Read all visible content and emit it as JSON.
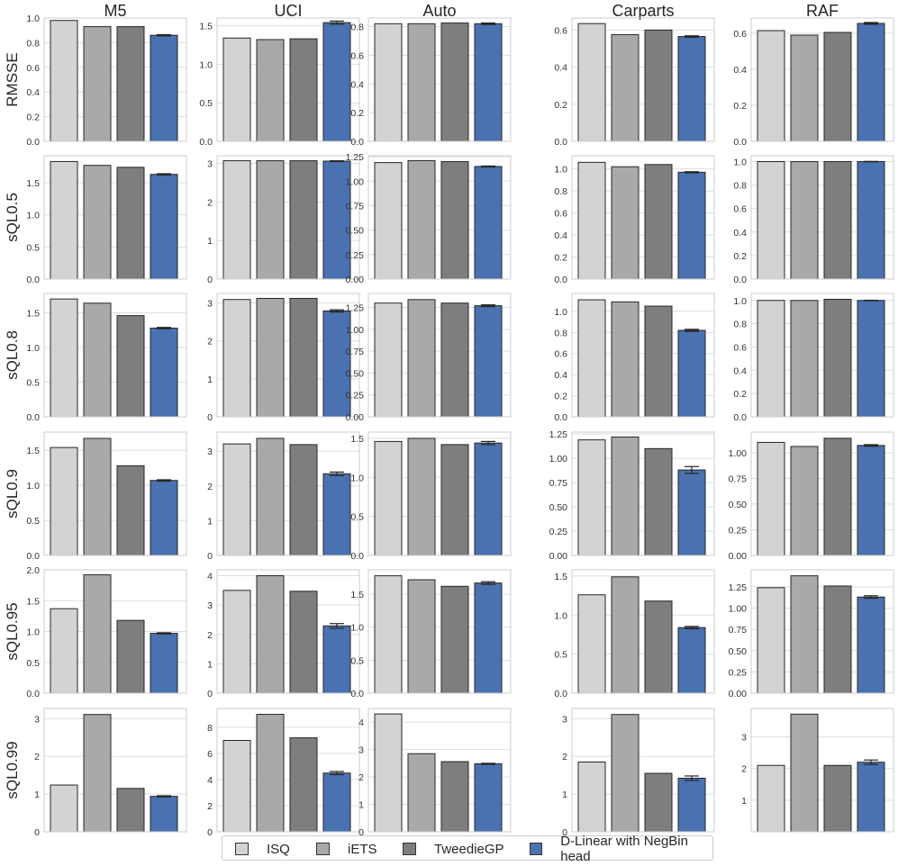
{
  "chart_data": {
    "type": "bar",
    "grid_rows": 6,
    "grid_cols": 5,
    "datasets": [
      "M5",
      "UCI",
      "Auto",
      "Carparts",
      "RAF"
    ],
    "metrics": [
      "RMSSE",
      "sQL0.5",
      "sQL0.8",
      "sQL0.9",
      "sQL0.95",
      "sQL0.99"
    ],
    "legend_position": "bottom",
    "grid": "horizontal",
    "series": [
      {
        "name": "ISQ",
        "color": "#d3d3d3"
      },
      {
        "name": "iETS",
        "color": "#a9a9a9"
      },
      {
        "name": "TweedieGP",
        "color": "#7e7e7e"
      },
      {
        "name": "D-Linear with NegBin head",
        "color": "#4a72b0"
      }
    ],
    "panels": [
      {
        "row": 0,
        "col": 0,
        "ylim": [
          0,
          1.0
        ],
        "ticks": [
          "0.0",
          "0.2",
          "0.4",
          "0.6",
          "0.8",
          "1.0"
        ],
        "values": [
          0.98,
          0.93,
          0.93,
          0.86
        ],
        "errors": [
          0,
          0,
          0,
          0.005
        ]
      },
      {
        "row": 0,
        "col": 1,
        "ylim": [
          0,
          1.6
        ],
        "ticks": [
          "0.0",
          "0.5",
          "1.0",
          "1.5"
        ],
        "values": [
          1.34,
          1.32,
          1.33,
          1.54
        ],
        "errors": [
          0,
          0,
          0,
          0.02
        ]
      },
      {
        "row": 0,
        "col": 2,
        "ylim": [
          0,
          0.86
        ],
        "ticks": [
          "0.0",
          "0.2",
          "0.4",
          "0.6",
          "0.8"
        ],
        "values": [
          0.82,
          0.82,
          0.825,
          0.82
        ],
        "errors": [
          0,
          0,
          0,
          0.005
        ]
      },
      {
        "row": 0,
        "col": 3,
        "ylim": [
          0,
          0.665
        ],
        "ticks": [
          "0.0",
          "0.2",
          "0.4",
          "0.6"
        ],
        "values": [
          0.635,
          0.575,
          0.6,
          0.565
        ],
        "errors": [
          0,
          0,
          0,
          0.004
        ]
      },
      {
        "row": 0,
        "col": 4,
        "ylim": [
          0,
          0.685
        ],
        "ticks": [
          "0.0",
          "0.2",
          "0.4",
          "0.6"
        ],
        "values": [
          0.615,
          0.59,
          0.605,
          0.655
        ],
        "errors": [
          0,
          0,
          0,
          0.005
        ]
      },
      {
        "row": 1,
        "col": 0,
        "ylim": [
          0,
          1.92
        ],
        "ticks": [
          "0.0",
          "0.5",
          "1.0",
          "1.5"
        ],
        "values": [
          1.83,
          1.77,
          1.74,
          1.63
        ],
        "errors": [
          0,
          0,
          0,
          0.01
        ]
      },
      {
        "row": 1,
        "col": 1,
        "ylim": [
          0,
          3.2
        ],
        "ticks": [
          "0",
          "1",
          "2",
          "3"
        ],
        "values": [
          3.07,
          3.07,
          3.07,
          3.06
        ],
        "errors": [
          0,
          0,
          0,
          0.01
        ]
      },
      {
        "row": 1,
        "col": 2,
        "ylim": [
          0,
          1.26
        ],
        "ticks": [
          "0.00",
          "0.25",
          "0.50",
          "0.75",
          "1.00",
          "1.25"
        ],
        "values": [
          1.19,
          1.21,
          1.2,
          1.15
        ],
        "errors": [
          0,
          0,
          0,
          0.005
        ]
      },
      {
        "row": 1,
        "col": 3,
        "ylim": [
          0,
          1.12
        ],
        "ticks": [
          "0.0",
          "0.2",
          "0.4",
          "0.6",
          "0.8",
          "1.0"
        ],
        "values": [
          1.06,
          1.02,
          1.04,
          0.97
        ],
        "errors": [
          0,
          0,
          0,
          0.005
        ]
      },
      {
        "row": 1,
        "col": 4,
        "ylim": [
          0,
          1.05
        ],
        "ticks": [
          "0.0",
          "0.2",
          "0.4",
          "0.6",
          "0.8",
          "1.0"
        ],
        "values": [
          1.0,
          1.0,
          1.0,
          1.0
        ],
        "errors": [
          0,
          0,
          0,
          0.002
        ]
      },
      {
        "row": 2,
        "col": 0,
        "ylim": [
          0,
          1.78
        ],
        "ticks": [
          "0.0",
          "0.5",
          "1.0",
          "1.5"
        ],
        "values": [
          1.7,
          1.64,
          1.46,
          1.28
        ],
        "errors": [
          0,
          0,
          0,
          0.01
        ]
      },
      {
        "row": 2,
        "col": 1,
        "ylim": [
          0,
          3.25
        ],
        "ticks": [
          "0",
          "1",
          "2",
          "3"
        ],
        "values": [
          3.09,
          3.12,
          3.12,
          2.79
        ],
        "errors": [
          0,
          0,
          0,
          0.03
        ]
      },
      {
        "row": 2,
        "col": 2,
        "ylim": [
          0,
          1.41
        ],
        "ticks": [
          "0.00",
          "0.25",
          "0.50",
          "0.75",
          "1.00",
          "1.25"
        ],
        "values": [
          1.3,
          1.34,
          1.3,
          1.27
        ],
        "errors": [
          0,
          0,
          0,
          0.01
        ]
      },
      {
        "row": 2,
        "col": 3,
        "ylim": [
          0,
          1.17
        ],
        "ticks": [
          "0.0",
          "0.2",
          "0.4",
          "0.6",
          "0.8",
          "1.0"
        ],
        "values": [
          1.11,
          1.09,
          1.05,
          0.82
        ],
        "errors": [
          0,
          0,
          0,
          0.01
        ]
      },
      {
        "row": 2,
        "col": 4,
        "ylim": [
          0,
          1.06
        ],
        "ticks": [
          "0.0",
          "0.2",
          "0.4",
          "0.6",
          "0.8",
          "1.0"
        ],
        "values": [
          1.0,
          1.0,
          1.01,
          1.0
        ],
        "errors": [
          0,
          0,
          0,
          0.002
        ]
      },
      {
        "row": 3,
        "col": 0,
        "ylim": [
          0,
          1.76
        ],
        "ticks": [
          "0.0",
          "0.5",
          "1.0",
          "1.5"
        ],
        "values": [
          1.54,
          1.67,
          1.28,
          1.07
        ],
        "errors": [
          0,
          0,
          0,
          0.01
        ]
      },
      {
        "row": 3,
        "col": 1,
        "ylim": [
          0,
          3.55
        ],
        "ticks": [
          "0",
          "1",
          "2",
          "3"
        ],
        "values": [
          3.21,
          3.37,
          3.19,
          2.35
        ],
        "errors": [
          0,
          0,
          0,
          0.05
        ]
      },
      {
        "row": 3,
        "col": 2,
        "ylim": [
          0,
          1.58
        ],
        "ticks": [
          "0.0",
          "0.5",
          "1.0",
          "1.5"
        ],
        "values": [
          1.46,
          1.5,
          1.42,
          1.44
        ],
        "errors": [
          0,
          0,
          0,
          0.02
        ]
      },
      {
        "row": 3,
        "col": 3,
        "ylim": [
          0,
          1.27
        ],
        "ticks": [
          "0.00",
          "0.25",
          "0.50",
          "0.75",
          "1.00",
          "1.25"
        ],
        "values": [
          1.19,
          1.22,
          1.1,
          0.88
        ],
        "errors": [
          0,
          0,
          0,
          0.035
        ]
      },
      {
        "row": 3,
        "col": 4,
        "ylim": [
          0,
          1.2
        ],
        "ticks": [
          "0.00",
          "0.25",
          "0.50",
          "0.75",
          "1.00"
        ],
        "values": [
          1.1,
          1.06,
          1.14,
          1.07
        ],
        "errors": [
          0,
          0,
          0,
          0.008
        ]
      },
      {
        "row": 4,
        "col": 0,
        "ylim": [
          0,
          2.0
        ],
        "ticks": [
          "0.0",
          "0.5",
          "1.0",
          "1.5",
          "2.0"
        ],
        "values": [
          1.37,
          1.92,
          1.18,
          0.97
        ],
        "errors": [
          0,
          0,
          0,
          0.01
        ]
      },
      {
        "row": 4,
        "col": 1,
        "ylim": [
          0,
          4.2
        ],
        "ticks": [
          "0",
          "1",
          "2",
          "3",
          "4"
        ],
        "values": [
          3.5,
          4.0,
          3.47,
          2.29
        ],
        "errors": [
          0,
          0,
          0,
          0.08
        ]
      },
      {
        "row": 4,
        "col": 2,
        "ylim": [
          0,
          1.87
        ],
        "ticks": [
          "0.0",
          "0.5",
          "1.0",
          "1.5"
        ],
        "values": [
          1.78,
          1.72,
          1.62,
          1.67
        ],
        "errors": [
          0,
          0,
          0,
          0.02
        ]
      },
      {
        "row": 4,
        "col": 3,
        "ylim": [
          0,
          1.58
        ],
        "ticks": [
          "0.0",
          "0.5",
          "1.0",
          "1.5"
        ],
        "values": [
          1.26,
          1.49,
          1.18,
          0.84
        ],
        "errors": [
          0,
          0,
          0,
          0.015
        ]
      },
      {
        "row": 4,
        "col": 4,
        "ylim": [
          0,
          1.45
        ],
        "ticks": [
          "0.00",
          "0.25",
          "0.50",
          "0.75",
          "1.00",
          "1.25"
        ],
        "values": [
          1.24,
          1.38,
          1.26,
          1.13
        ],
        "errors": [
          0,
          0,
          0,
          0.015
        ]
      },
      {
        "row": 5,
        "col": 0,
        "ylim": [
          0,
          3.27
        ],
        "ticks": [
          "0",
          "1",
          "2",
          "3"
        ],
        "values": [
          1.24,
          3.11,
          1.15,
          0.94
        ],
        "errors": [
          0,
          0,
          0,
          0.015
        ]
      },
      {
        "row": 5,
        "col": 1,
        "ylim": [
          0,
          9.45
        ],
        "ticks": [
          "0",
          "2",
          "4",
          "6",
          "8"
        ],
        "values": [
          7.0,
          9.0,
          7.2,
          4.5
        ],
        "errors": [
          0,
          0,
          0,
          0.12
        ]
      },
      {
        "row": 5,
        "col": 2,
        "ylim": [
          0,
          4.5
        ],
        "ticks": [
          "0",
          "1",
          "2",
          "3",
          "4"
        ],
        "values": [
          4.3,
          2.85,
          2.56,
          2.48
        ],
        "errors": [
          0,
          0,
          0,
          0.02
        ]
      },
      {
        "row": 5,
        "col": 3,
        "ylim": [
          0,
          3.27
        ],
        "ticks": [
          "0",
          "1",
          "2",
          "3"
        ],
        "values": [
          1.85,
          3.11,
          1.55,
          1.42
        ],
        "errors": [
          0,
          0,
          0,
          0.06
        ]
      },
      {
        "row": 5,
        "col": 4,
        "ylim": [
          0,
          3.9
        ],
        "ticks": [
          "1",
          "2",
          "3"
        ],
        "values": [
          2.1,
          3.72,
          2.1,
          2.2
        ],
        "errors": [
          0,
          0,
          0,
          0.07
        ]
      }
    ]
  }
}
